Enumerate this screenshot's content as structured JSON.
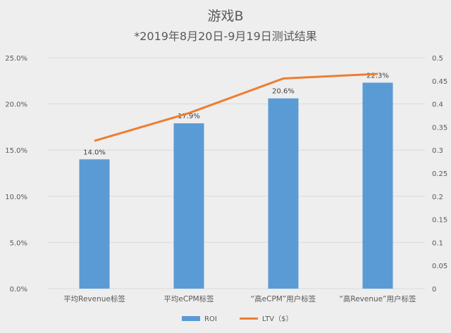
{
  "chart_data": {
    "type": "bar+line",
    "title": "游戏B",
    "subtitle": "*2019年8月20日-9月19日测试结果",
    "categories": [
      "平均Revenue标签",
      "平均eCPM标签",
      "“高eCPM”用户标签",
      "“高Revenue”用户标签"
    ],
    "series": [
      {
        "name": "ROI",
        "type": "bar",
        "axis": "left",
        "color": "#5b9bd5",
        "values": [
          14.0,
          17.9,
          20.6,
          22.3
        ],
        "labels": [
          "14.0%",
          "17.9%",
          "20.6%",
          "22.3%"
        ]
      },
      {
        "name": "LTV（$）",
        "type": "line",
        "axis": "right",
        "color": "#ed7d31",
        "values": [
          0.32,
          0.38,
          0.455,
          0.465
        ]
      }
    ],
    "y_left": {
      "min": 0,
      "max": 25,
      "ticks": [
        "0.0%",
        "5.0%",
        "10.0%",
        "15.0%",
        "20.0%",
        "25.0%"
      ]
    },
    "y_right": {
      "min": 0,
      "max": 0.5,
      "ticks": [
        "0",
        "0.05",
        "0.1",
        "0.15",
        "0.2",
        "0.25",
        "0.3",
        "0.35",
        "0.4",
        "0.45",
        "0.5"
      ]
    },
    "grid": true,
    "legend_position": "bottom"
  }
}
